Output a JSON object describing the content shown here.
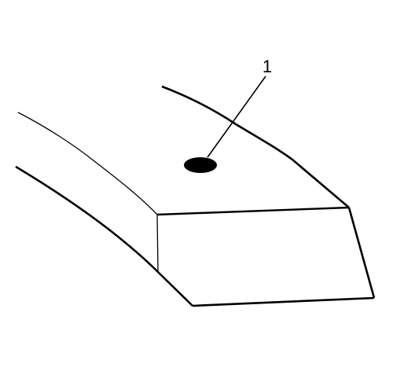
{
  "callouts": [
    {
      "number": "1"
    }
  ],
  "colors": {
    "line": "#000000",
    "marker": "#000000",
    "background": "#ffffff"
  }
}
